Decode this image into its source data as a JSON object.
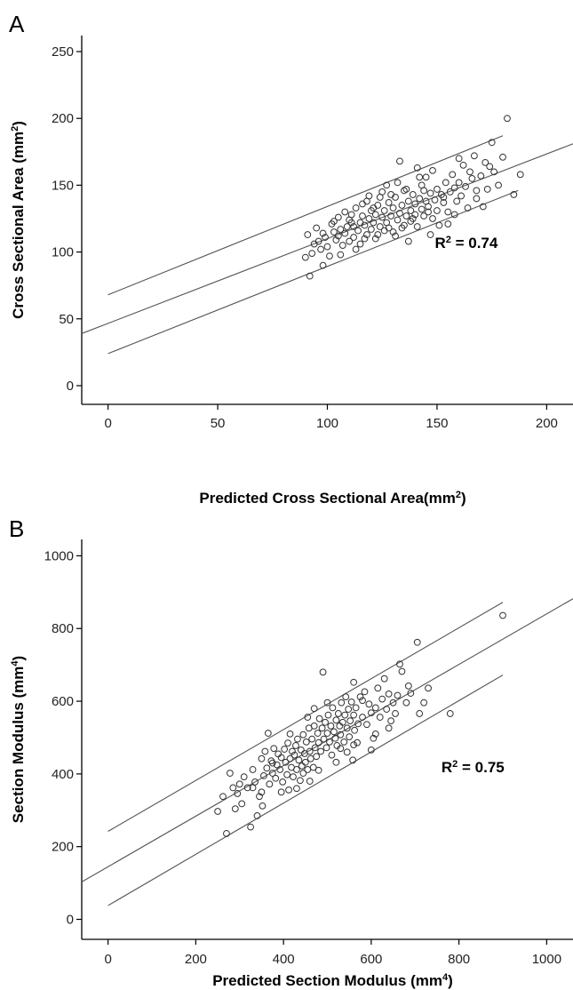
{
  "chart_data": [
    {
      "panel": "A",
      "type": "scatter",
      "xlabel": "Predicted Cross Sectional Area(mm",
      "xlabel_sup": "2",
      "xlabel_tail": ")",
      "ylabel": "Cross Sectional Area (mm",
      "ylabel_sup": "2",
      "ylabel_tail": ")",
      "xlim": [
        -12,
        212
      ],
      "ylim": [
        -14,
        262
      ],
      "xticks": [
        0,
        50,
        100,
        150,
        200
      ],
      "yticks": [
        0,
        50,
        100,
        150,
        200,
        250
      ],
      "grid": false,
      "annotation": {
        "text": "R",
        "sup": "2",
        "tail": " = 0.74",
        "x": 149,
        "y": 103
      },
      "lines": [
        {
          "role": "upper prediction limit",
          "x": [
            0,
            180
          ],
          "y": [
            68,
            187
          ]
        },
        {
          "role": "regression fit",
          "x": [
            -12,
            212
          ],
          "y": [
            39,
            181
          ]
        },
        {
          "role": "lower prediction limit",
          "x": [
            0,
            187
          ],
          "y": [
            24,
            146
          ]
        }
      ],
      "points": [
        [
          90,
          96
        ],
        [
          91,
          113
        ],
        [
          92,
          82
        ],
        [
          93,
          99
        ],
        [
          94,
          106
        ],
        [
          95,
          118
        ],
        [
          96,
          108
        ],
        [
          97,
          102
        ],
        [
          98,
          90
        ],
        [
          99,
          111
        ],
        [
          100,
          104
        ],
        [
          101,
          97
        ],
        [
          102,
          121
        ],
        [
          103,
          115
        ],
        [
          104,
          109
        ],
        [
          105,
          112
        ],
        [
          105,
          126
        ],
        [
          106,
          117
        ],
        [
          107,
          105
        ],
        [
          108,
          130
        ],
        [
          108,
          114
        ],
        [
          109,
          119
        ],
        [
          110,
          108
        ],
        [
          110,
          124
        ],
        [
          111,
          128
        ],
        [
          112,
          111
        ],
        [
          112,
          119
        ],
        [
          113,
          133
        ],
        [
          114,
          116
        ],
        [
          115,
          122
        ],
        [
          115,
          106
        ],
        [
          116,
          127
        ],
        [
          117,
          120
        ],
        [
          118,
          138
        ],
        [
          118,
          113
        ],
        [
          119,
          125
        ],
        [
          120,
          131
        ],
        [
          120,
          117
        ],
        [
          121,
          122
        ],
        [
          122,
          128
        ],
        [
          122,
          110
        ],
        [
          123,
          135
        ],
        [
          124,
          119
        ],
        [
          125,
          126
        ],
        [
          125,
          145
        ],
        [
          126,
          131
        ],
        [
          127,
          122
        ],
        [
          128,
          118
        ],
        [
          128,
          137
        ],
        [
          129,
          127
        ],
        [
          130,
          133
        ],
        [
          130,
          115
        ],
        [
          131,
          141
        ],
        [
          132,
          124
        ],
        [
          133,
          129
        ],
        [
          133,
          168
        ],
        [
          134,
          135
        ],
        [
          135,
          120
        ],
        [
          135,
          146
        ],
        [
          136,
          127
        ],
        [
          137,
          138
        ],
        [
          138,
          131
        ],
        [
          138,
          123
        ],
        [
          139,
          143
        ],
        [
          140,
          128
        ],
        [
          140,
          136
        ],
        [
          141,
          119
        ],
        [
          142,
          140
        ],
        [
          143,
          132
        ],
        [
          143,
          150
        ],
        [
          144,
          127
        ],
        [
          145,
          138
        ],
        [
          145,
          156
        ],
        [
          146,
          134
        ],
        [
          147,
          144
        ],
        [
          148,
          125
        ],
        [
          148,
          161
        ],
        [
          149,
          139
        ],
        [
          150,
          131
        ],
        [
          150,
          147
        ],
        [
          151,
          120
        ],
        [
          152,
          143
        ],
        [
          153,
          137
        ],
        [
          154,
          152
        ],
        [
          155,
          130
        ],
        [
          156,
          145
        ],
        [
          157,
          158
        ],
        [
          158,
          148
        ],
        [
          159,
          138
        ],
        [
          160,
          152
        ],
        [
          161,
          142
        ],
        [
          162,
          165
        ],
        [
          163,
          149
        ],
        [
          164,
          133
        ],
        [
          165,
          160
        ],
        [
          166,
          155
        ],
        [
          167,
          172
        ],
        [
          168,
          146
        ],
        [
          170,
          157
        ],
        [
          171,
          134
        ],
        [
          172,
          167
        ],
        [
          173,
          147
        ],
        [
          175,
          182
        ],
        [
          176,
          160
        ],
        [
          178,
          150
        ],
        [
          180,
          171
        ],
        [
          182,
          200
        ],
        [
          185,
          143
        ],
        [
          188,
          158
        ],
        [
          127,
          150
        ],
        [
          119,
          142
        ],
        [
          131,
          112
        ],
        [
          142,
          156
        ],
        [
          113,
          102
        ],
        [
          106,
          98
        ],
        [
          155,
          121
        ],
        [
          160,
          170
        ],
        [
          137,
          108
        ],
        [
          124,
          141
        ],
        [
          116,
          136
        ],
        [
          147,
          113
        ],
        [
          132,
          152
        ],
        [
          126,
          116
        ],
        [
          103,
          123
        ],
        [
          98,
          114
        ],
        [
          144,
          146
        ],
        [
          139,
          125
        ],
        [
          121,
          133
        ],
        [
          111,
          122
        ],
        [
          129,
          143
        ],
        [
          153,
          141
        ],
        [
          158,
          128
        ],
        [
          134,
          118
        ],
        [
          117,
          110
        ],
        [
          146,
          130
        ],
        [
          168,
          140
        ],
        [
          174,
          164
        ],
        [
          141,
          163
        ],
        [
          136,
          147
        ],
        [
          123,
          113
        ]
      ]
    },
    {
      "panel": "B",
      "type": "scatter",
      "xlabel": "Predicted Section Modulus (mm",
      "xlabel_sup": "4",
      "xlabel_tail": ")",
      "ylabel": "Section Modulus (mm",
      "ylabel_sup": "4",
      "ylabel_tail": ")",
      "xlim": [
        -60,
        1060
      ],
      "ylim": [
        -55,
        1045
      ],
      "xticks": [
        0,
        200,
        400,
        600,
        800,
        1000
      ],
      "yticks": [
        0,
        200,
        400,
        600,
        800,
        1000
      ],
      "grid": false,
      "annotation": {
        "text": "R",
        "sup": "2",
        "tail": " = 0.75",
        "x": 760,
        "y": 405
      },
      "lines": [
        {
          "role": "upper prediction limit",
          "x": [
            0,
            900
          ],
          "y": [
            242,
            872
          ]
        },
        {
          "role": "regression fit",
          "x": [
            -60,
            1060
          ],
          "y": [
            103,
            882
          ]
        },
        {
          "role": "lower prediction limit",
          "x": [
            0,
            900
          ],
          "y": [
            38,
            672
          ]
        }
      ],
      "points": [
        [
          250,
          297
        ],
        [
          262,
          338
        ],
        [
          270,
          236
        ],
        [
          278,
          402
        ],
        [
          285,
          362
        ],
        [
          290,
          304
        ],
        [
          295,
          346
        ],
        [
          300,
          372
        ],
        [
          305,
          318
        ],
        [
          310,
          392
        ],
        [
          318,
          362
        ],
        [
          325,
          254
        ],
        [
          330,
          412
        ],
        [
          335,
          378
        ],
        [
          340,
          285
        ],
        [
          345,
          338
        ],
        [
          350,
          442
        ],
        [
          352,
          312
        ],
        [
          355,
          395
        ],
        [
          358,
          462
        ],
        [
          362,
          416
        ],
        [
          365,
          512
        ],
        [
          368,
          372
        ],
        [
          372,
          436
        ],
        [
          375,
          402
        ],
        [
          378,
          470
        ],
        [
          382,
          388
        ],
        [
          385,
          425
        ],
        [
          388,
          455
        ],
        [
          392,
          412
        ],
        [
          395,
          445
        ],
        [
          398,
          378
        ],
        [
          402,
          468
        ],
        [
          405,
          432
        ],
        [
          408,
          398
        ],
        [
          410,
          485
        ],
        [
          412,
          356
        ],
        [
          415,
          442
        ],
        [
          418,
          418
        ],
        [
          420,
          462
        ],
        [
          422,
          392
        ],
        [
          425,
          452
        ],
        [
          428,
          478
        ],
        [
          430,
          412
        ],
        [
          432,
          496
        ],
        [
          435,
          438
        ],
        [
          438,
          382
        ],
        [
          440,
          466
        ],
        [
          442,
          422
        ],
        [
          445,
          508
        ],
        [
          448,
          456
        ],
        [
          450,
          432
        ],
        [
          452,
          488
        ],
        [
          455,
          412
        ],
        [
          458,
          526
        ],
        [
          460,
          462
        ],
        [
          462,
          442
        ],
        [
          465,
          496
        ],
        [
          468,
          418
        ],
        [
          470,
          532
        ],
        [
          472,
          472
        ],
        [
          475,
          448
        ],
        [
          478,
          512
        ],
        [
          480,
          486
        ],
        [
          482,
          552
        ],
        [
          485,
          462
        ],
        [
          488,
          526
        ],
        [
          490,
          680
        ],
        [
          492,
          496
        ],
        [
          495,
          542
        ],
        [
          498,
          472
        ],
        [
          500,
          512
        ],
        [
          502,
          562
        ],
        [
          505,
          488
        ],
        [
          508,
          532
        ],
        [
          510,
          452
        ],
        [
          512,
          582
        ],
        [
          515,
          516
        ],
        [
          518,
          498
        ],
        [
          520,
          548
        ],
        [
          522,
          478
        ],
        [
          525,
          566
        ],
        [
          528,
          532
        ],
        [
          530,
          508
        ],
        [
          532,
          596
        ],
        [
          535,
          542
        ],
        [
          538,
          488
        ],
        [
          540,
          562
        ],
        [
          542,
          612
        ],
        [
          545,
          526
        ],
        [
          548,
          578
        ],
        [
          550,
          502
        ],
        [
          552,
          546
        ],
        [
          555,
          598
        ],
        [
          558,
          438
        ],
        [
          560,
          562
        ],
        [
          562,
          520
        ],
        [
          565,
          582
        ],
        [
          568,
          486
        ],
        [
          570,
          538
        ],
        [
          575,
          612
        ],
        [
          580,
          556
        ],
        [
          585,
          626
        ],
        [
          590,
          536
        ],
        [
          595,
          592
        ],
        [
          600,
          568
        ],
        [
          605,
          498
        ],
        [
          610,
          582
        ],
        [
          615,
          636
        ],
        [
          620,
          556
        ],
        [
          625,
          606
        ],
        [
          630,
          662
        ],
        [
          635,
          578
        ],
        [
          640,
          620
        ],
        [
          645,
          546
        ],
        [
          650,
          596
        ],
        [
          655,
          566
        ],
        [
          660,
          616
        ],
        [
          665,
          702
        ],
        [
          670,
          682
        ],
        [
          680,
          596
        ],
        [
          685,
          642
        ],
        [
          690,
          622
        ],
        [
          705,
          762
        ],
        [
          710,
          566
        ],
        [
          720,
          596
        ],
        [
          730,
          636
        ],
        [
          780,
          566
        ],
        [
          900,
          836
        ],
        [
          460,
          380
        ],
        [
          520,
          432
        ],
        [
          430,
          360
        ],
        [
          395,
          350
        ],
        [
          545,
          460
        ],
        [
          610,
          510
        ],
        [
          600,
          466
        ],
        [
          375,
          430
        ],
        [
          470,
          580
        ],
        [
          560,
          652
        ],
        [
          640,
          526
        ],
        [
          500,
          596
        ],
        [
          415,
          510
        ],
        [
          445,
          402
        ],
        [
          530,
          470
        ],
        [
          455,
          556
        ],
        [
          350,
          350
        ],
        [
          330,
          362
        ],
        [
          580,
          602
        ],
        [
          560,
          480
        ],
        [
          480,
          410
        ]
      ]
    }
  ]
}
